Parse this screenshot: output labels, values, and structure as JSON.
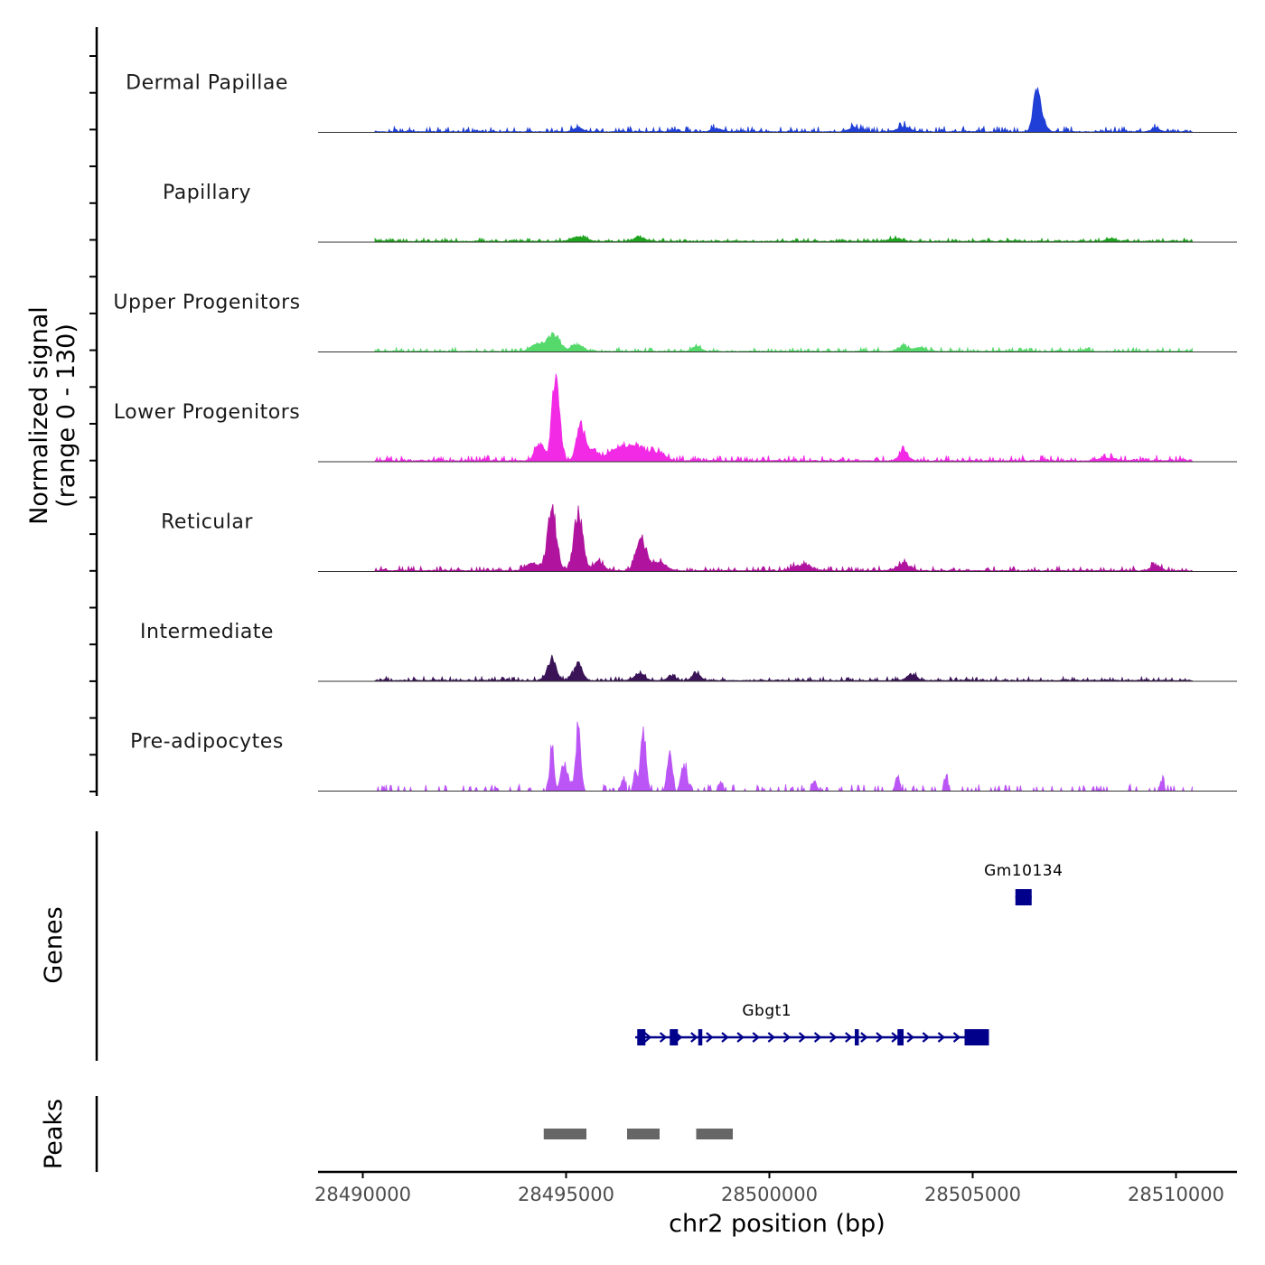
{
  "chart_data": {
    "type": "area",
    "title": "",
    "ylabel_line1": "Normalized signal",
    "ylabel_line2": "(range 0 - 130)",
    "xlabel": "chr2 position (bp)",
    "xlim": [
      28488900,
      28511500
    ],
    "ylim": [
      0,
      130
    ],
    "x_ticks": [
      28490000,
      28495000,
      28500000,
      28505000,
      28510000
    ],
    "x_tick_labels": [
      "28490000",
      "28495000",
      "28500000",
      "28505000",
      "28510000"
    ],
    "signal_range": [
      28490300,
      28510400
    ],
    "series": [
      {
        "name": "Dermal Papillae",
        "color": "#1f3fd6",
        "base": 1.2,
        "noise": 7,
        "peaks": [
          [
            28506550,
            40,
            70
          ],
          [
            28506650,
            28,
            110
          ],
          [
            28503300,
            7,
            150
          ],
          [
            28502100,
            6,
            130
          ],
          [
            28495300,
            5,
            120
          ],
          [
            28498700,
            5,
            120
          ],
          [
            28509500,
            5,
            100
          ]
        ]
      },
      {
        "name": "Papillary",
        "color": "#1ea31e",
        "base": 1.5,
        "noise": 4,
        "peaks": [
          [
            28495300,
            6,
            180
          ],
          [
            28496800,
            5,
            150
          ],
          [
            28508400,
            4,
            120
          ],
          [
            28503100,
            4,
            150
          ]
        ]
      },
      {
        "name": "Upper Progenitors",
        "color": "#55d96b",
        "base": 1.2,
        "noise": 5,
        "peaks": [
          [
            28494700,
            24,
            150
          ],
          [
            28494300,
            10,
            160
          ],
          [
            28495300,
            8,
            140
          ],
          [
            28498200,
            7,
            100
          ],
          [
            28503300,
            7,
            120
          ],
          [
            28503700,
            6,
            130
          ]
        ]
      },
      {
        "name": "Lower Progenitors",
        "color": "#f22ae6",
        "base": 1.8,
        "noise": 7,
        "peaks": [
          [
            28494750,
            125,
            90
          ],
          [
            28494350,
            25,
            110
          ],
          [
            28495350,
            45,
            100
          ],
          [
            28495600,
            15,
            160
          ],
          [
            28496300,
            17,
            260
          ],
          [
            28496800,
            17,
            260
          ],
          [
            28497300,
            9,
            160
          ],
          [
            28503300,
            13,
            110
          ],
          [
            28508300,
            4,
            200
          ]
        ]
      },
      {
        "name": "Reticular",
        "color": "#b0149e",
        "base": 1.5,
        "noise": 6,
        "peaks": [
          [
            28494650,
            83,
            110
          ],
          [
            28495300,
            83,
            110
          ],
          [
            28496850,
            40,
            130
          ],
          [
            28494150,
            12,
            140
          ],
          [
            28495800,
            12,
            120
          ],
          [
            28497300,
            12,
            160
          ],
          [
            28500800,
            8,
            200
          ],
          [
            28503300,
            10,
            150
          ],
          [
            28509500,
            7,
            120
          ]
        ]
      },
      {
        "name": "Intermediate",
        "color": "#3a1456",
        "base": 1.5,
        "noise": 5,
        "peaks": [
          [
            28494650,
            30,
            100
          ],
          [
            28495300,
            24,
            100
          ],
          [
            28496800,
            10,
            120
          ],
          [
            28498200,
            10,
            100
          ],
          [
            28503500,
            8,
            120
          ],
          [
            28497600,
            6,
            100
          ]
        ]
      },
      {
        "name": "Pre-adipocytes",
        "color": "#bb55f5",
        "base": 0,
        "noise": 9,
        "peaks": [
          [
            28494650,
            63,
            50
          ],
          [
            28495300,
            92,
            60
          ],
          [
            28496900,
            90,
            60
          ],
          [
            28497550,
            55,
            60
          ],
          [
            28497900,
            35,
            70
          ],
          [
            28495000,
            25,
            80
          ],
          [
            28494900,
            20,
            60
          ],
          [
            28496700,
            25,
            50
          ],
          [
            28496400,
            15,
            50
          ],
          [
            28498800,
            12,
            60
          ],
          [
            28501100,
            15,
            50
          ],
          [
            28503150,
            22,
            50
          ],
          [
            28504350,
            15,
            50
          ],
          [
            28509650,
            15,
            50
          ]
        ]
      }
    ],
    "genes": [
      {
        "name": "Gm10134",
        "start": 28506050,
        "end": 28506450,
        "strand": "+",
        "exons": [
          [
            28506050,
            28506450
          ]
        ]
      },
      {
        "name": "Gbgt1",
        "start": 28496700,
        "end": 28505400,
        "strand": "+",
        "exons": [
          [
            28496750,
            28496950
          ],
          [
            28497550,
            28497750
          ],
          [
            28498250,
            28498350
          ],
          [
            28502100,
            28502200
          ],
          [
            28503150,
            28503300
          ],
          [
            28504800,
            28505400
          ]
        ]
      }
    ],
    "peaks": [
      {
        "start": 28494450,
        "end": 28495500
      },
      {
        "start": 28496500,
        "end": 28497300
      },
      {
        "start": 28498200,
        "end": 28499100
      }
    ],
    "panel_titles": {
      "genes": "Genes",
      "peaks": "Peaks"
    },
    "colors": {
      "gene": "#00008b",
      "peak": "#666666",
      "baseline": "#333333",
      "axis": "#000000"
    }
  }
}
